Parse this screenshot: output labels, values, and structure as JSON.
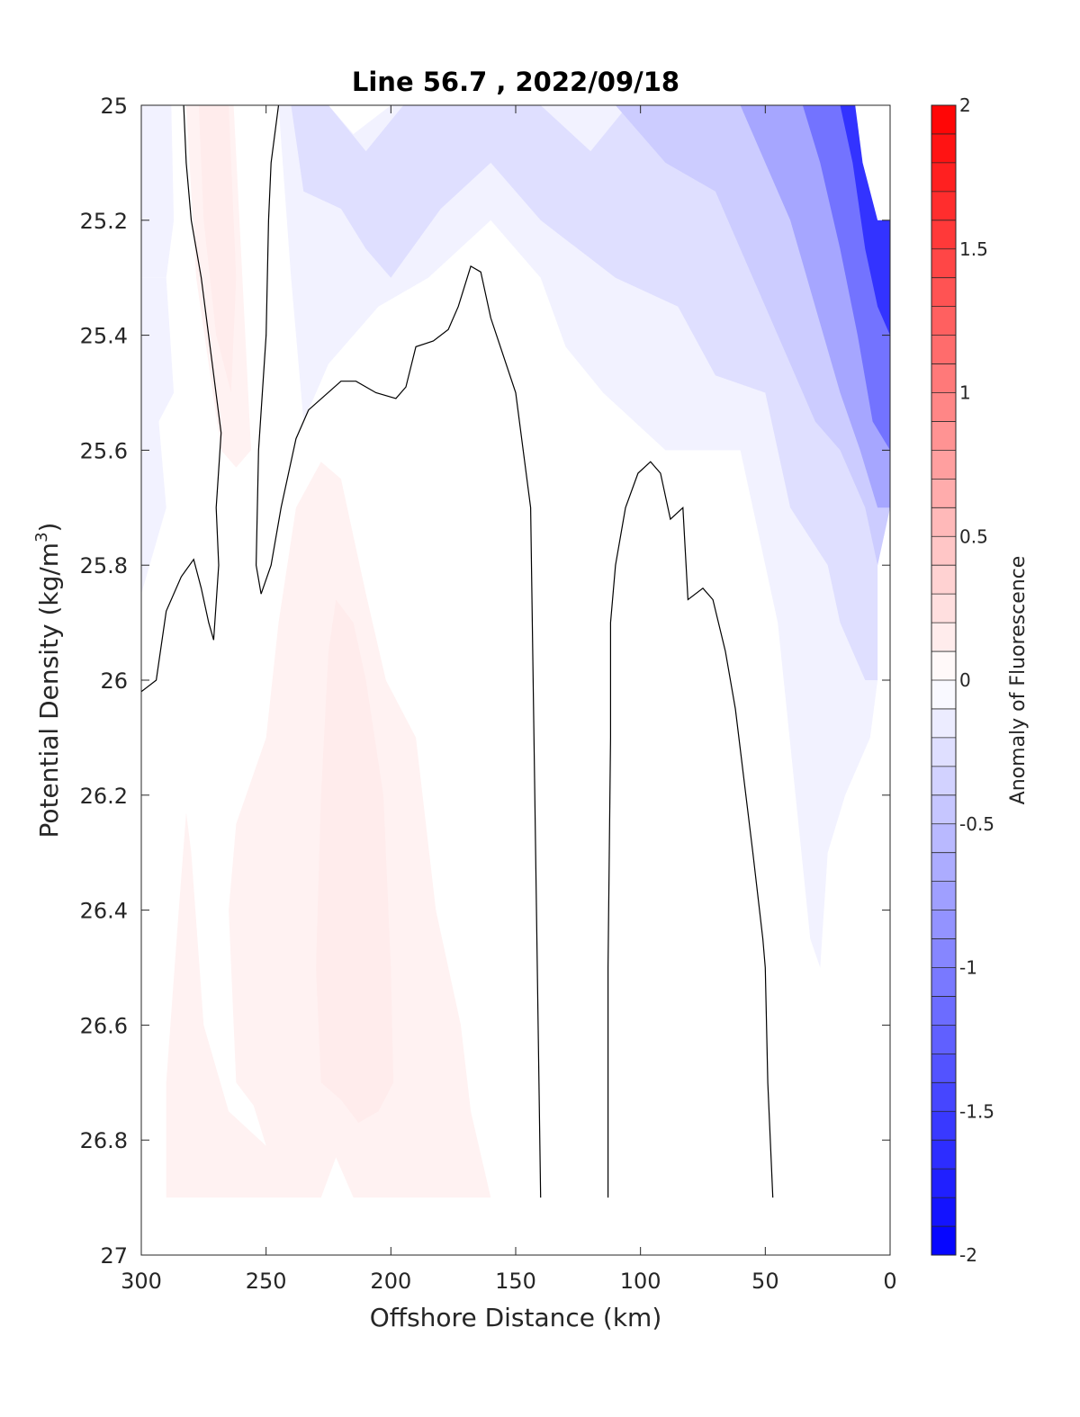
{
  "chart_data": {
    "type": "contour",
    "title": "Line 56.7 , 2022/09/18",
    "xlabel": "Offshore Distance (km)",
    "ylabel": "Potential Density (kg/m",
    "ylabel_superscript": "3",
    "ylabel_suffix": ")",
    "xlim": [
      300,
      0
    ],
    "ylim": [
      27,
      25
    ],
    "x_reversed": true,
    "y_reversed": true,
    "x_ticks": [
      300,
      250,
      200,
      150,
      100,
      50,
      0
    ],
    "x_tick_labels": [
      "300",
      "250",
      "200",
      "150",
      "100",
      "50",
      "0"
    ],
    "y_ticks": [
      25,
      25.2,
      25.4,
      25.6,
      25.8,
      26,
      26.2,
      26.4,
      26.6,
      26.8,
      27
    ],
    "y_tick_labels": [
      "25",
      "25.2",
      "25.4",
      "25.6",
      "25.8",
      "26",
      "26.2",
      "26.4",
      "26.6",
      "26.8",
      "27"
    ],
    "colorbar": {
      "label": "Anomaly of Fluorescence",
      "range": [
        -2,
        2
      ],
      "levels": 40,
      "low_color": "#0000ff",
      "mid_color": "#ffffff",
      "high_color": "#ff0000",
      "ticks": [
        -2,
        -1.5,
        -1,
        -0.5,
        0,
        0.5,
        1,
        1.5,
        2
      ],
      "tick_labels": [
        "-2",
        "-1.5",
        "-1",
        "-0.5",
        "0",
        "0.5",
        "1",
        "1.5",
        "2"
      ]
    },
    "fill_regions": [
      {
        "name": "positive-anomaly-upper",
        "value": 0.1,
        "points": [
          [
            282,
            25
          ],
          [
            263,
            25
          ],
          [
            256,
            25.6
          ],
          [
            262,
            25.63
          ],
          [
            268,
            25.6
          ],
          [
            278,
            25.3
          ]
        ]
      },
      {
        "name": "positive-anomaly-upper-core",
        "value": 0.15,
        "points": [
          [
            277,
            25
          ],
          [
            265,
            25
          ],
          [
            262,
            25.3
          ],
          [
            264,
            25.5
          ],
          [
            270,
            25.4
          ],
          [
            275,
            25.2
          ]
        ]
      },
      {
        "name": "positive-anomaly-mid-lower",
        "value": 0.1,
        "points": [
          [
            290,
            26.9
          ],
          [
            228,
            26.9
          ],
          [
            222,
            26.83
          ],
          [
            215,
            26.9
          ],
          [
            160,
            26.9
          ],
          [
            168,
            26.75
          ],
          [
            172,
            26.6
          ],
          [
            182,
            26.4
          ],
          [
            190,
            26.1
          ],
          [
            202,
            26
          ],
          [
            210,
            25.85
          ],
          [
            220,
            25.65
          ],
          [
            228,
            25.62
          ],
          [
            238,
            25.7
          ],
          [
            245,
            25.9
          ],
          [
            250,
            26.1
          ],
          [
            262,
            26.25
          ],
          [
            265,
            26.4
          ],
          [
            262,
            26.7
          ],
          [
            255,
            26.74
          ],
          [
            250,
            26.81
          ],
          [
            265,
            26.75
          ],
          [
            275,
            26.6
          ],
          [
            280,
            26.3
          ],
          [
            282,
            26.23
          ],
          [
            285,
            26.4
          ],
          [
            290,
            26.7
          ]
        ]
      },
      {
        "name": "positive-anomaly-core",
        "value": 0.15,
        "points": [
          [
            230,
            26.5
          ],
          [
            228,
            26.2
          ],
          [
            225,
            25.95
          ],
          [
            222,
            25.86
          ],
          [
            215,
            25.9
          ],
          [
            210,
            26
          ],
          [
            203,
            26.2
          ],
          [
            200,
            26.5
          ],
          [
            199,
            26.7
          ],
          [
            205,
            26.75
          ],
          [
            213,
            26.77
          ],
          [
            220,
            26.73
          ],
          [
            228,
            26.7
          ]
        ]
      },
      {
        "name": "negative-anomaly-offshore",
        "value": -0.1,
        "points": [
          [
            300,
            25.85
          ],
          [
            290,
            25.7
          ],
          [
            293,
            25.55
          ],
          [
            287,
            25.5
          ],
          [
            290,
            25.3
          ],
          [
            300,
            25.3
          ]
        ]
      },
      {
        "name": "negative-anomaly-offshore-top",
        "value": -0.1,
        "points": [
          [
            300,
            25
          ],
          [
            288,
            25
          ],
          [
            287,
            25.2
          ],
          [
            290,
            25.3
          ],
          [
            300,
            25.3
          ]
        ]
      },
      {
        "name": "negative-anomaly-surface-band",
        "value": -0.1,
        "points": [
          [
            245,
            25
          ],
          [
            240,
            25.3
          ],
          [
            235,
            25.55
          ],
          [
            225,
            25.45
          ],
          [
            205,
            25.35
          ],
          [
            185,
            25.3
          ],
          [
            160,
            25.2
          ],
          [
            140,
            25.3
          ],
          [
            130,
            25.42
          ],
          [
            115,
            25.5
          ],
          [
            90,
            25.6
          ],
          [
            60,
            25.6
          ],
          [
            45,
            25.9
          ],
          [
            32,
            26.45
          ],
          [
            28,
            26.5
          ],
          [
            25,
            26.3
          ],
          [
            18,
            26.2
          ],
          [
            8,
            26.1
          ],
          [
            5,
            26
          ],
          [
            5,
            25.75
          ],
          [
            0,
            25.7
          ],
          [
            0,
            25.2
          ],
          [
            5,
            25.2
          ],
          [
            10,
            25
          ],
          [
            150,
            25
          ],
          [
            170,
            25.08
          ],
          [
            190,
            25
          ],
          [
            200,
            25
          ],
          [
            215,
            25.05
          ],
          [
            225,
            25
          ]
        ]
      },
      {
        "name": "negative-anomaly-inner",
        "value": -0.25,
        "points": [
          [
            240,
            25
          ],
          [
            235,
            25.15
          ],
          [
            220,
            25.18
          ],
          [
            210,
            25.25
          ],
          [
            200,
            25.3
          ],
          [
            180,
            25.18
          ],
          [
            160,
            25.1
          ],
          [
            140,
            25.2
          ],
          [
            125,
            25.25
          ],
          [
            110,
            25.3
          ],
          [
            85,
            25.35
          ],
          [
            70,
            25.47
          ],
          [
            50,
            25.5
          ],
          [
            40,
            25.7
          ],
          [
            25,
            25.8
          ],
          [
            20,
            25.9
          ],
          [
            10,
            26
          ],
          [
            5,
            26
          ],
          [
            5,
            25.8
          ],
          [
            0,
            25.7
          ],
          [
            0,
            25.2
          ],
          [
            5,
            25.2
          ],
          [
            10,
            25
          ],
          [
            105,
            25
          ],
          [
            120,
            25.08
          ],
          [
            140,
            25
          ],
          [
            160,
            25
          ],
          [
            175,
            25
          ],
          [
            195,
            25
          ],
          [
            210,
            25.08
          ],
          [
            225,
            25
          ]
        ]
      },
      {
        "name": "negative-anomaly-core-1",
        "value": -0.4,
        "points": [
          [
            110,
            25
          ],
          [
            100,
            25.05
          ],
          [
            90,
            25.1
          ],
          [
            70,
            25.15
          ],
          [
            55,
            25.3
          ],
          [
            40,
            25.45
          ],
          [
            30,
            25.55
          ],
          [
            20,
            25.6
          ],
          [
            10,
            25.7
          ],
          [
            5,
            25.8
          ],
          [
            0,
            25.7
          ],
          [
            0,
            25.2
          ],
          [
            5,
            25.2
          ],
          [
            10,
            25
          ]
        ]
      },
      {
        "name": "negative-anomaly-core-2",
        "value": -0.7,
        "points": [
          [
            60,
            25
          ],
          [
            50,
            25.1
          ],
          [
            40,
            25.2
          ],
          [
            30,
            25.35
          ],
          [
            20,
            25.5
          ],
          [
            12,
            25.6
          ],
          [
            5,
            25.7
          ],
          [
            0,
            25.7
          ],
          [
            0,
            25.2
          ],
          [
            5,
            25.2
          ],
          [
            10,
            25
          ]
        ]
      },
      {
        "name": "negative-anomaly-core-3",
        "value": -1.1,
        "points": [
          [
            35,
            25
          ],
          [
            28,
            25.1
          ],
          [
            20,
            25.25
          ],
          [
            13,
            25.4
          ],
          [
            7,
            25.55
          ],
          [
            0,
            25.6
          ],
          [
            0,
            25.2
          ],
          [
            5,
            25.2
          ],
          [
            10,
            25
          ]
        ]
      },
      {
        "name": "negative-anomaly-core-4",
        "value": -1.6,
        "points": [
          [
            20,
            25
          ],
          [
            15,
            25.1
          ],
          [
            10,
            25.25
          ],
          [
            5,
            25.35
          ],
          [
            0,
            25.4
          ],
          [
            0,
            25.2
          ],
          [
            5,
            25.2
          ],
          [
            10,
            25
          ]
        ]
      }
    ],
    "blank_regions": [
      {
        "name": "no-data-top-right",
        "points": [
          [
            14,
            25
          ],
          [
            0,
            25
          ],
          [
            0,
            25.2
          ],
          [
            5,
            25.2
          ],
          [
            11,
            25.1
          ]
        ]
      },
      {
        "name": "no-data-bottom",
        "points": [
          [
            300,
            26.9
          ],
          [
            0,
            26.9
          ],
          [
            0,
            27
          ],
          [
            300,
            27
          ]
        ]
      }
    ],
    "contour_lines": [
      {
        "name": "zero-contour-1",
        "points": [
          [
            300,
            26.02
          ],
          [
            294,
            26
          ],
          [
            290,
            25.88
          ],
          [
            284,
            25.82
          ],
          [
            279,
            25.79
          ],
          [
            276,
            25.84
          ],
          [
            273,
            25.9
          ],
          [
            271,
            25.93
          ],
          [
            269,
            25.8
          ],
          [
            270,
            25.7
          ],
          [
            268,
            25.57
          ],
          [
            276,
            25.3
          ],
          [
            280,
            25.2
          ],
          [
            282,
            25.1
          ],
          [
            283,
            25
          ]
        ]
      },
      {
        "name": "zero-contour-2",
        "points": [
          [
            245,
            25
          ],
          [
            248,
            25.1
          ],
          [
            249,
            25.2
          ],
          [
            250,
            25.4
          ],
          [
            253,
            25.6
          ],
          [
            254,
            25.8
          ],
          [
            252,
            25.85
          ],
          [
            248,
            25.8
          ],
          [
            244,
            25.7
          ],
          [
            238,
            25.58
          ],
          [
            233,
            25.53
          ],
          [
            220,
            25.48
          ],
          [
            214,
            25.48
          ],
          [
            206,
            25.5
          ],
          [
            198,
            25.51
          ],
          [
            194,
            25.49
          ],
          [
            190,
            25.42
          ],
          [
            183,
            25.41
          ],
          [
            177,
            25.39
          ],
          [
            173,
            25.35
          ],
          [
            168,
            25.28
          ],
          [
            164,
            25.29
          ],
          [
            160,
            25.37
          ],
          [
            150,
            25.5
          ],
          [
            147,
            25.6
          ],
          [
            144,
            25.7
          ],
          [
            140,
            26.9
          ]
        ]
      },
      {
        "name": "zero-contour-3",
        "points": [
          [
            113,
            26.9
          ],
          [
            113,
            26.5
          ],
          [
            112,
            26.1
          ],
          [
            112,
            25.9
          ],
          [
            110,
            25.8
          ],
          [
            106,
            25.7
          ],
          [
            101,
            25.64
          ],
          [
            96,
            25.62
          ],
          [
            92,
            25.64
          ],
          [
            88,
            25.72
          ],
          [
            83,
            25.7
          ],
          [
            81,
            25.86
          ],
          [
            75,
            25.84
          ],
          [
            71,
            25.86
          ],
          [
            66,
            25.95
          ],
          [
            62,
            26.05
          ],
          [
            55,
            26.3
          ],
          [
            51,
            26.45
          ],
          [
            50,
            26.5
          ],
          [
            49,
            26.7
          ],
          [
            47,
            26.9
          ]
        ]
      }
    ]
  }
}
